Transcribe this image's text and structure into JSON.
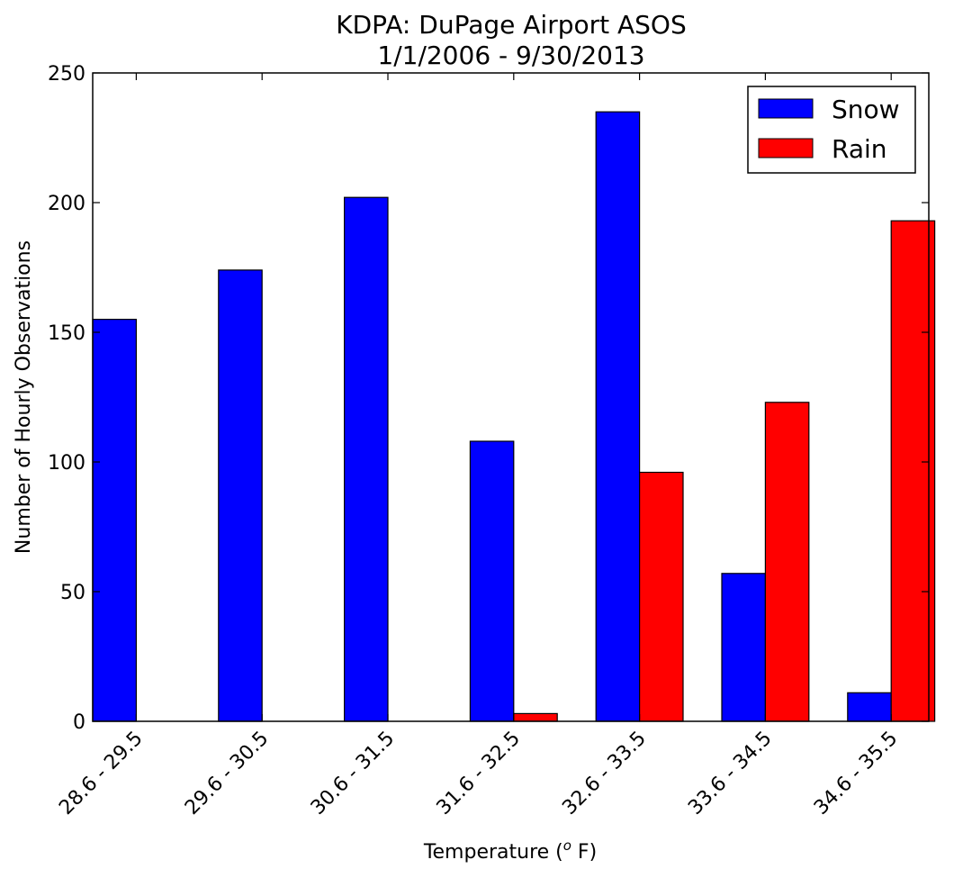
{
  "chart_data": {
    "type": "bar",
    "title": "KDPA: DuPage Airport ASOS",
    "subtitle": "1/1/2006 - 9/30/2013",
    "xlabel": "Temperature (",
    "xlabel_sup": "o",
    "xlabel_suffix": " F)",
    "ylabel": "Number of Hourly Observations",
    "ylim": [
      0,
      250
    ],
    "yticks": [
      0,
      50,
      100,
      150,
      200,
      250
    ],
    "categories": [
      "28.6 - 29.5",
      "29.6 - 30.5",
      "30.6 - 31.5",
      "31.6 - 32.5",
      "32.6 - 33.5",
      "33.6 - 34.5",
      "34.6 - 35.5"
    ],
    "series": [
      {
        "name": "Snow",
        "color": "#0000ff",
        "values": [
          155,
          174,
          202,
          108,
          235,
          57,
          11
        ]
      },
      {
        "name": "Rain",
        "color": "#ff0000",
        "values": [
          0,
          0,
          0,
          3,
          96,
          123,
          193
        ]
      }
    ],
    "legend": "top-right",
    "grid": false
  }
}
